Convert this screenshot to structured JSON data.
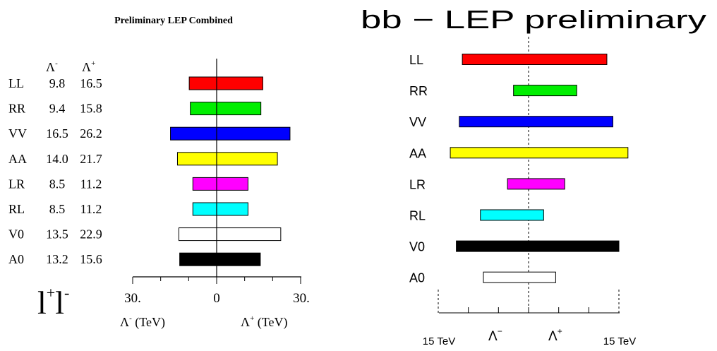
{
  "chart_data": [
    {
      "type": "bar",
      "title": "Preliminary LEP Combined",
      "col_minus": "Λ",
      "col_plus": "Λ",
      "col_minus_sup": "-",
      "col_plus_sup": "+",
      "categories": [
        "LL",
        "RR",
        "VV",
        "AA",
        "LR",
        "RL",
        "V0",
        "A0"
      ],
      "lambda_minus": [
        "9.8",
        "9.4",
        "16.5",
        "14.0",
        "8.5",
        "8.5",
        "13.5",
        "13.2"
      ],
      "lambda_plus": [
        "16.5",
        "15.8",
        "26.2",
        "21.7",
        "11.2",
        "11.2",
        "22.9",
        "15.6"
      ],
      "values_minus": [
        9.8,
        9.4,
        16.5,
        14.0,
        8.5,
        8.5,
        13.5,
        13.2
      ],
      "values_plus": [
        16.5,
        15.8,
        26.2,
        21.7,
        11.2,
        11.2,
        22.9,
        15.6
      ],
      "colors": [
        "#ff0000",
        "#00ee00",
        "#0000ff",
        "#ffff00",
        "#ff00ff",
        "#00ffff",
        "#ffffff",
        "#000000"
      ],
      "ticks": [
        "30.",
        "0",
        "30."
      ],
      "xlim": [
        -30,
        30
      ],
      "xlabel_minus": "Λ",
      "xlabel_minus_sup": "-",
      "xlabel_minus_unit": " (TeV)",
      "xlabel_plus": "Λ",
      "xlabel_plus_sup": "+",
      "xlabel_plus_unit": " (TeV)",
      "channel_base": "l",
      "channel_sup1": "+",
      "channel_sup2": "-"
    },
    {
      "type": "bar",
      "title": "bb − LEP preliminary",
      "categories": [
        "LL",
        "RR",
        "VV",
        "AA",
        "LR",
        "RL",
        "V0",
        "A0"
      ],
      "values_minus": [
        11,
        2.5,
        11.5,
        13,
        3.5,
        8,
        12,
        7.5
      ],
      "values_plus": [
        13,
        8,
        14,
        16.5,
        6,
        2.5,
        15,
        4.5
      ],
      "colors": [
        "#ff0000",
        "#00ee00",
        "#0000ff",
        "#ffff00",
        "#ff00ff",
        "#00ffff",
        "#000000",
        "#ffffff"
      ],
      "xlim": [
        -15,
        15
      ],
      "tick_left": "15 TeV",
      "tick_right": "15 TeV",
      "xlabel_minus": "Λ",
      "xlabel_minus_sup": "−",
      "xlabel_plus": "Λ",
      "xlabel_plus_sup": "+"
    }
  ]
}
